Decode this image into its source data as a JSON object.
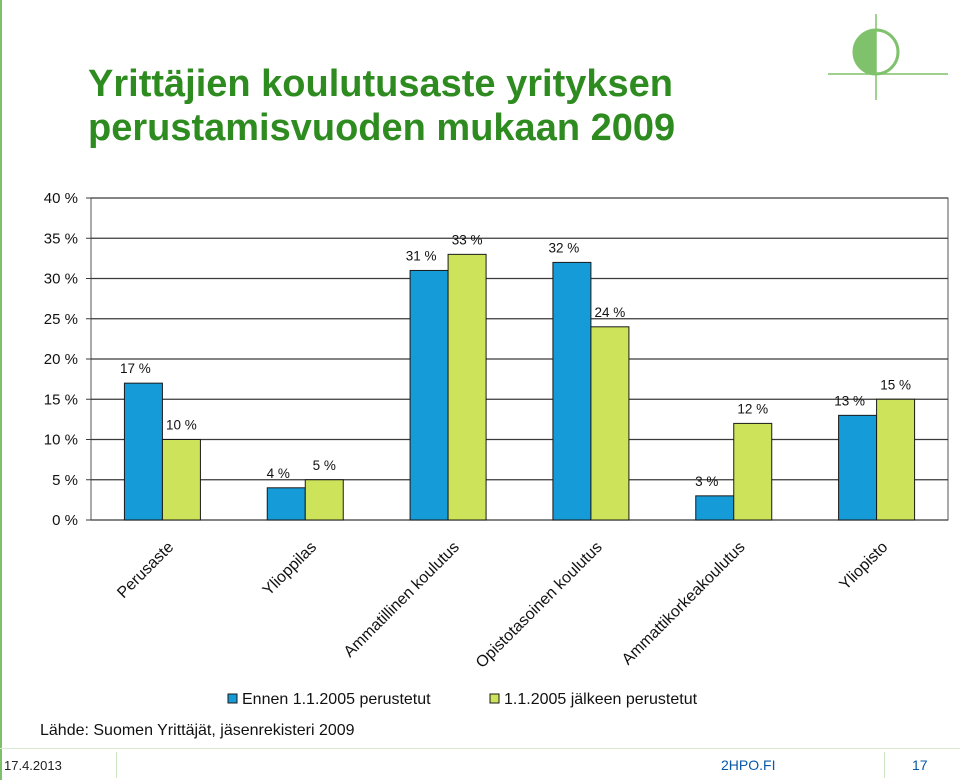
{
  "slide": {
    "title": "Yrittäjien koulutusaste yrityksen perustamisvuoden mukaan 2009",
    "source": "Lähde: Suomen Yrittäjät, jäsenrekisteri 2009",
    "date": "17.4.2013",
    "site": "2HPO.FI",
    "page_number": "17",
    "accent_color": "#2e8b1f"
  },
  "chart_data": {
    "type": "bar",
    "title": "",
    "xlabel": "",
    "ylabel": "",
    "ylim": [
      0,
      40
    ],
    "yticks": [
      "0 %",
      "5 %",
      "10 %",
      "15 %",
      "20 %",
      "25 %",
      "30 %",
      "35 %",
      "40 %"
    ],
    "grid": true,
    "legend_position": "bottom",
    "categories": [
      "Perusaste",
      "Ylioppilas",
      "Ammatillinen koulutus",
      "Opistotasoinen koulutus",
      "Ammattikorkeakoulutus",
      "Yliopisto"
    ],
    "series": [
      {
        "name": "Ennen 1.1.2005 perustetut",
        "color": "#159bd7",
        "values": [
          17,
          4,
          31,
          32,
          3,
          13
        ],
        "labels": [
          "17 %",
          "4 %",
          "31 %",
          "32 %",
          "3 %",
          "13 %"
        ]
      },
      {
        "name": "1.1.2005 jälkeen perustetut",
        "color": "#cce35a",
        "values": [
          10,
          5,
          33,
          24,
          12,
          15
        ],
        "labels": [
          "10 %",
          "5 %",
          "33 %",
          "24 %",
          "12 %",
          "15 %"
        ]
      }
    ]
  }
}
